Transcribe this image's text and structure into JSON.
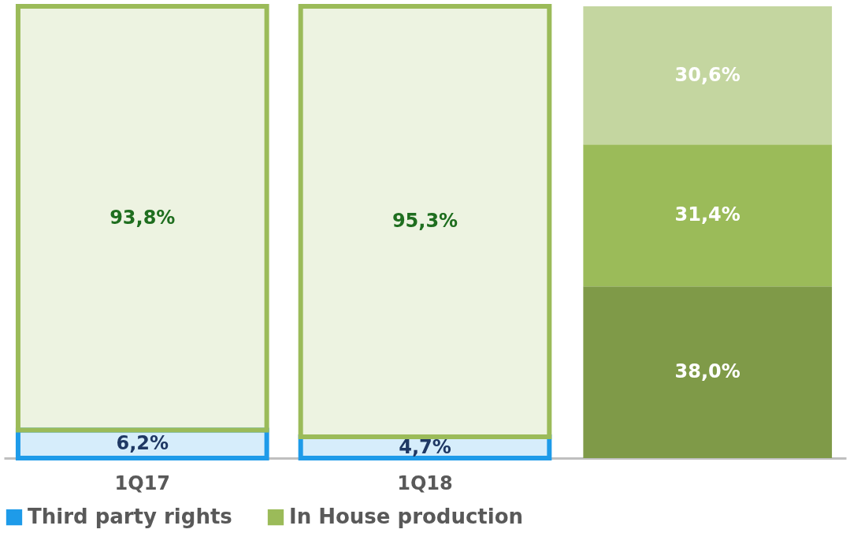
{
  "chart_data": {
    "type": "bar",
    "stacked": true,
    "categories": [
      "1Q17",
      "1Q18",
      null
    ],
    "series": [
      {
        "name": "Third party rights",
        "color": "#1e9be9",
        "values": [
          6.2,
          4.7,
          null
        ],
        "value_labels": [
          "6,2%",
          "4,7%",
          null
        ]
      },
      {
        "name": "In House production",
        "color": "#9bbb59",
        "values": [
          93.8,
          95.3,
          null
        ],
        "value_labels": [
          "93,8%",
          "95,3%",
          null
        ]
      },
      {
        "color": "#7f9a48",
        "values": [
          null,
          null,
          38.0
        ],
        "value_labels": [
          null,
          null,
          "38,0%"
        ]
      },
      {
        "color": "#9bbb59",
        "values": [
          null,
          null,
          31.4
        ],
        "value_labels": [
          null,
          null,
          "31,4%"
        ]
      },
      {
        "color": "#c4d6a0",
        "values": [
          null,
          null,
          30.6
        ],
        "value_labels": [
          null,
          null,
          "30,6%"
        ]
      }
    ],
    "legend": "bottom"
  }
}
